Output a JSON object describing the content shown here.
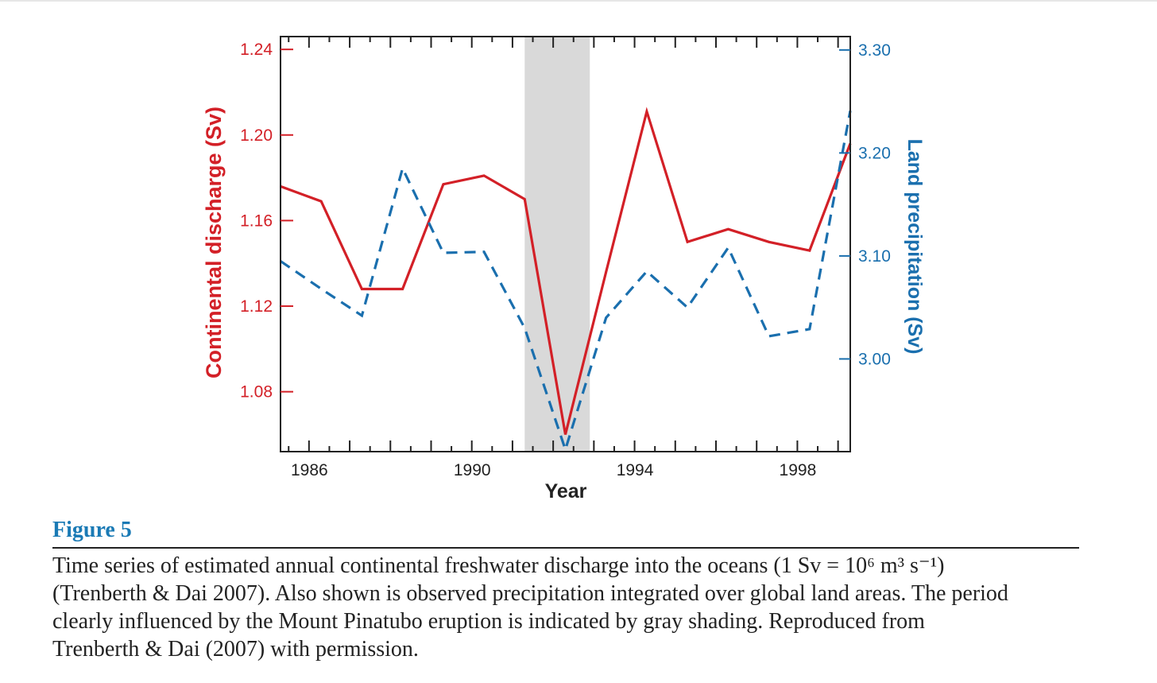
{
  "chart_data": {
    "type": "line",
    "xlabel": "Year",
    "ylabel_left": "Continental discharge (Sv)",
    "ylabel_right": "Land precipitation (Sv)",
    "x_ticks": [
      "1986",
      "1990",
      "1994",
      "1998"
    ],
    "y_left_ticks": [
      "1.24",
      "1.20",
      "1.16",
      "1.12",
      "1.08"
    ],
    "y_right_ticks": [
      "3.30",
      "3.20",
      "3.10",
      "3.00"
    ],
    "xlim": [
      1985.3,
      1999.3
    ],
    "ylim_left": [
      1.052,
      1.246
    ],
    "ylim_right": [
      2.91,
      3.313
    ],
    "shaded_period": [
      1991.3,
      1992.9
    ],
    "grid": false,
    "series": [
      {
        "axis": "left",
        "style": "solid",
        "color": "#d32027",
        "x": [
          1985.3,
          1986.3,
          1987.3,
          1988.3,
          1989.3,
          1990.3,
          1991.3,
          1992.3,
          1993.3,
          1994.3,
          1995.3,
          1996.3,
          1997.3,
          1998.3,
          1999.3
        ],
        "y": [
          1.176,
          1.169,
          1.128,
          1.128,
          1.177,
          1.181,
          1.17,
          1.06,
          1.136,
          1.211,
          1.15,
          1.156,
          1.15,
          1.146,
          1.196
        ]
      },
      {
        "axis": "right",
        "style": "dashed",
        "color": "#1a6fae",
        "x": [
          1985.3,
          1986.3,
          1987.3,
          1988.3,
          1989.3,
          1990.3,
          1991.3,
          1992.3,
          1993.3,
          1994.3,
          1995.3,
          1996.3,
          1997.3,
          1998.3,
          1999.3
        ],
        "y": [
          3.095,
          3.068,
          3.042,
          3.185,
          3.103,
          3.104,
          3.03,
          2.912,
          3.04,
          3.085,
          3.05,
          3.108,
          3.022,
          3.029,
          3.241
        ]
      }
    ]
  },
  "caption": {
    "label": "Figure 5",
    "text": "Time series of estimated annual continental freshwater discharge into the oceans (1 Sv  =  10⁶ m³ s⁻¹)\n(Trenberth & Dai 2007). Also shown is observed precipitation integrated over global land areas. The period\nclearly influenced by the Mount Pinatubo eruption is indicated by gray shading. Reproduced from\nTrenberth & Dai (2007) with permission."
  },
  "colors": {
    "left_axis": "#d32027",
    "right_axis": "#1a6fae",
    "shading": "#d9d9d9",
    "figure_label": "#1a7ab5"
  }
}
